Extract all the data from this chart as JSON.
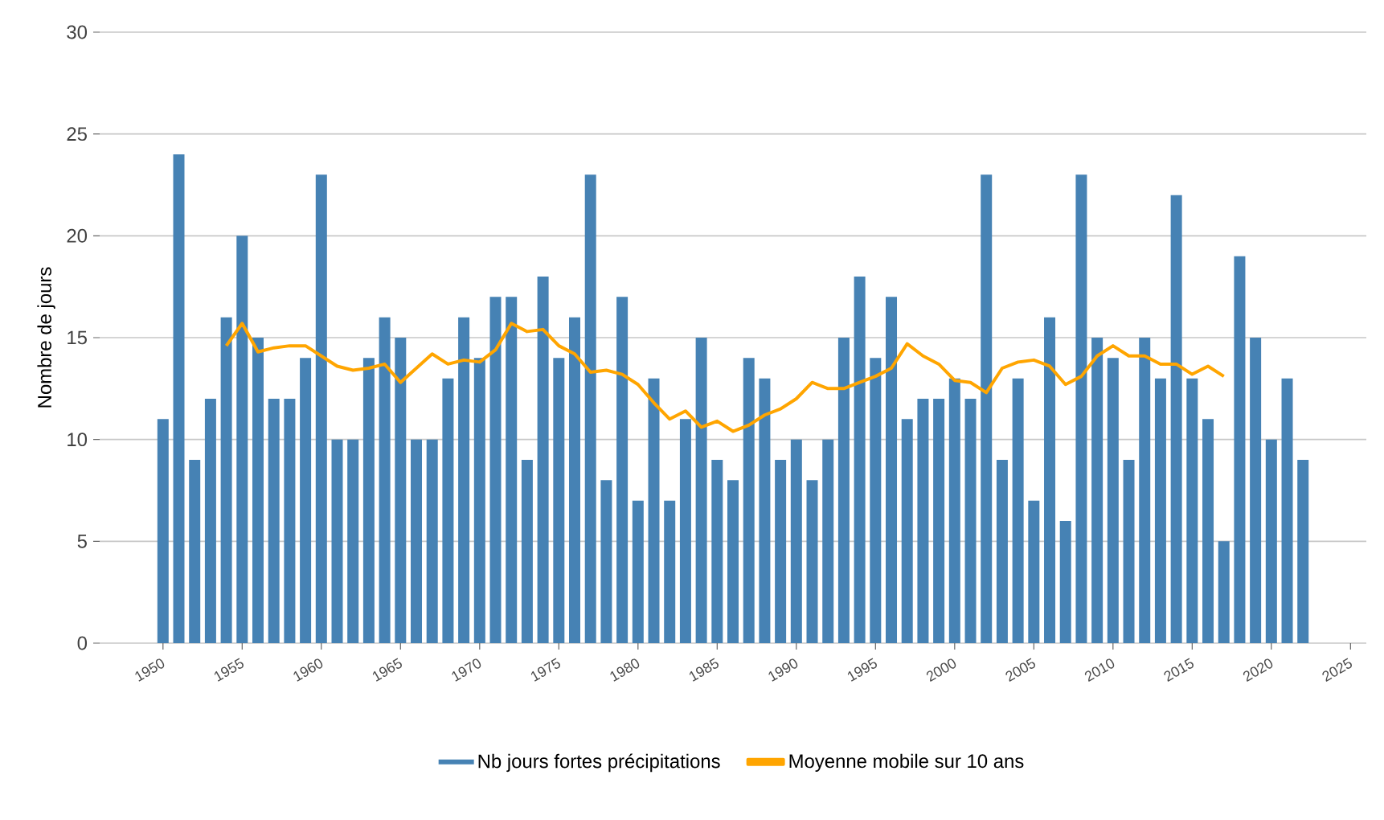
{
  "chart_data": {
    "type": "bar",
    "ylabel": "Nombre de jours",
    "xlim": [
      1946,
      2026
    ],
    "ylim": [
      0,
      30
    ],
    "xticks": [
      1950,
      1955,
      1960,
      1965,
      1970,
      1975,
      1980,
      1985,
      1990,
      1995,
      2000,
      2005,
      2010,
      2015,
      2020,
      2025
    ],
    "yticks": [
      0,
      5,
      10,
      15,
      20,
      25,
      30
    ],
    "grid": "y",
    "legend": "bottom",
    "x": [
      1950,
      1951,
      1952,
      1953,
      1954,
      1955,
      1956,
      1957,
      1958,
      1959,
      1960,
      1961,
      1962,
      1963,
      1964,
      1965,
      1966,
      1967,
      1968,
      1969,
      1970,
      1971,
      1972,
      1973,
      1974,
      1975,
      1976,
      1977,
      1978,
      1979,
      1980,
      1981,
      1982,
      1983,
      1984,
      1985,
      1986,
      1987,
      1988,
      1989,
      1990,
      1991,
      1992,
      1993,
      1994,
      1995,
      1996,
      1997,
      1998,
      1999,
      2000,
      2001,
      2002,
      2003,
      2004,
      2005,
      2006,
      2007,
      2008,
      2009,
      2010,
      2011,
      2012,
      2013,
      2014,
      2015,
      2016,
      2017,
      2018,
      2019,
      2020,
      2021,
      2022
    ],
    "series": [
      {
        "name": "Nb jours fortes précipitations",
        "color": "#4682b4",
        "values": [
          11,
          24,
          9,
          12,
          16,
          20,
          15,
          12,
          12,
          14,
          23,
          10,
          10,
          14,
          16,
          15,
          10,
          10,
          13,
          16,
          14,
          17,
          17,
          9,
          18,
          14,
          16,
          23,
          8,
          17,
          7,
          13,
          7,
          11,
          15,
          9,
          8,
          14,
          13,
          9,
          10,
          8,
          10,
          15,
          18,
          14,
          17,
          11,
          12,
          12,
          13,
          12,
          23,
          9,
          13,
          7,
          16,
          6,
          23,
          15,
          14,
          9,
          15,
          13,
          22,
          13,
          11,
          5,
          19,
          15,
          10,
          13,
          9
        ]
      },
      {
        "name": "Moyenne mobile sur 10 ans",
        "type": "line",
        "color": "#ffa500",
        "x": [
          1954,
          1955,
          1956,
          1957,
          1958,
          1959,
          1960,
          1961,
          1962,
          1963,
          1964,
          1965,
          1966,
          1967,
          1968,
          1969,
          1970,
          1971,
          1972,
          1973,
          1974,
          1975,
          1976,
          1977,
          1978,
          1979,
          1980,
          1981,
          1982,
          1983,
          1984,
          1985,
          1986,
          1987,
          1988,
          1989,
          1990,
          1991,
          1992,
          1993,
          1994,
          1995,
          1996,
          1997,
          1998,
          1999,
          2000,
          2001,
          2002,
          2003,
          2004,
          2005,
          2006,
          2007,
          2008,
          2009,
          2010,
          2011,
          2012,
          2013,
          2014,
          2015,
          2016,
          2017
        ],
        "values": [
          14.6,
          15.7,
          14.3,
          14.5,
          14.6,
          14.6,
          14.1,
          13.6,
          13.4,
          13.5,
          13.7,
          12.8,
          13.5,
          14.2,
          13.7,
          13.9,
          13.8,
          14.4,
          15.7,
          15.3,
          15.4,
          14.6,
          14.2,
          13.3,
          13.4,
          13.2,
          12.7,
          11.8,
          11.0,
          11.4,
          10.6,
          10.9,
          10.4,
          10.7,
          11.2,
          11.5,
          12.0,
          12.8,
          12.5,
          12.5,
          12.8,
          13.1,
          13.5,
          14.7,
          14.1,
          13.7,
          12.9,
          12.8,
          12.3,
          13.5,
          13.8,
          13.9,
          13.6,
          12.7,
          13.1,
          14.1,
          14.6,
          14.1,
          14.1,
          13.7,
          13.7,
          13.2,
          13.6,
          13.1
        ]
      }
    ]
  }
}
